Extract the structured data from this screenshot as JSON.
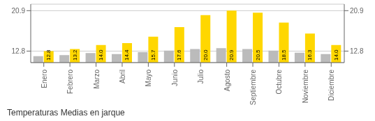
{
  "chart_data": {
    "type": "bar",
    "title": "Temperaturas Medias en jarque",
    "categories": [
      "Enero",
      "Febrero",
      "Marzo",
      "Abril",
      "Mayo",
      "Junio",
      "Julio",
      "Agosto",
      "Septiembre",
      "Octubre",
      "Noviembre",
      "Diciembre"
    ],
    "series": [
      {
        "color": "#BBBBBB",
        "values": [
          11.8,
          12.0,
          12.4,
          12.2,
          12.6,
          12.9,
          13.2,
          13.4,
          13.2,
          12.9,
          12.5,
          12.2
        ]
      },
      {
        "color": "#FFD700",
        "values": [
          12.8,
          13.2,
          14.0,
          14.4,
          15.7,
          17.6,
          20.0,
          20.9,
          20.5,
          18.5,
          16.3,
          14.0
        ],
        "data_labels": true,
        "value_labels": [
          "12.8",
          "13.2",
          "14.0",
          "14.4",
          "15.7",
          "17.6",
          "20.0",
          "20.9",
          "20.5",
          "18.5",
          "16.3",
          "14.0"
        ]
      }
    ],
    "ylim": [
      10.5,
      22.2
    ],
    "yticks": [
      12.8,
      20.9
    ],
    "y2lim": [
      10.5,
      22.2
    ],
    "y2ticks": [
      12.8,
      20.9
    ],
    "grid": true
  }
}
